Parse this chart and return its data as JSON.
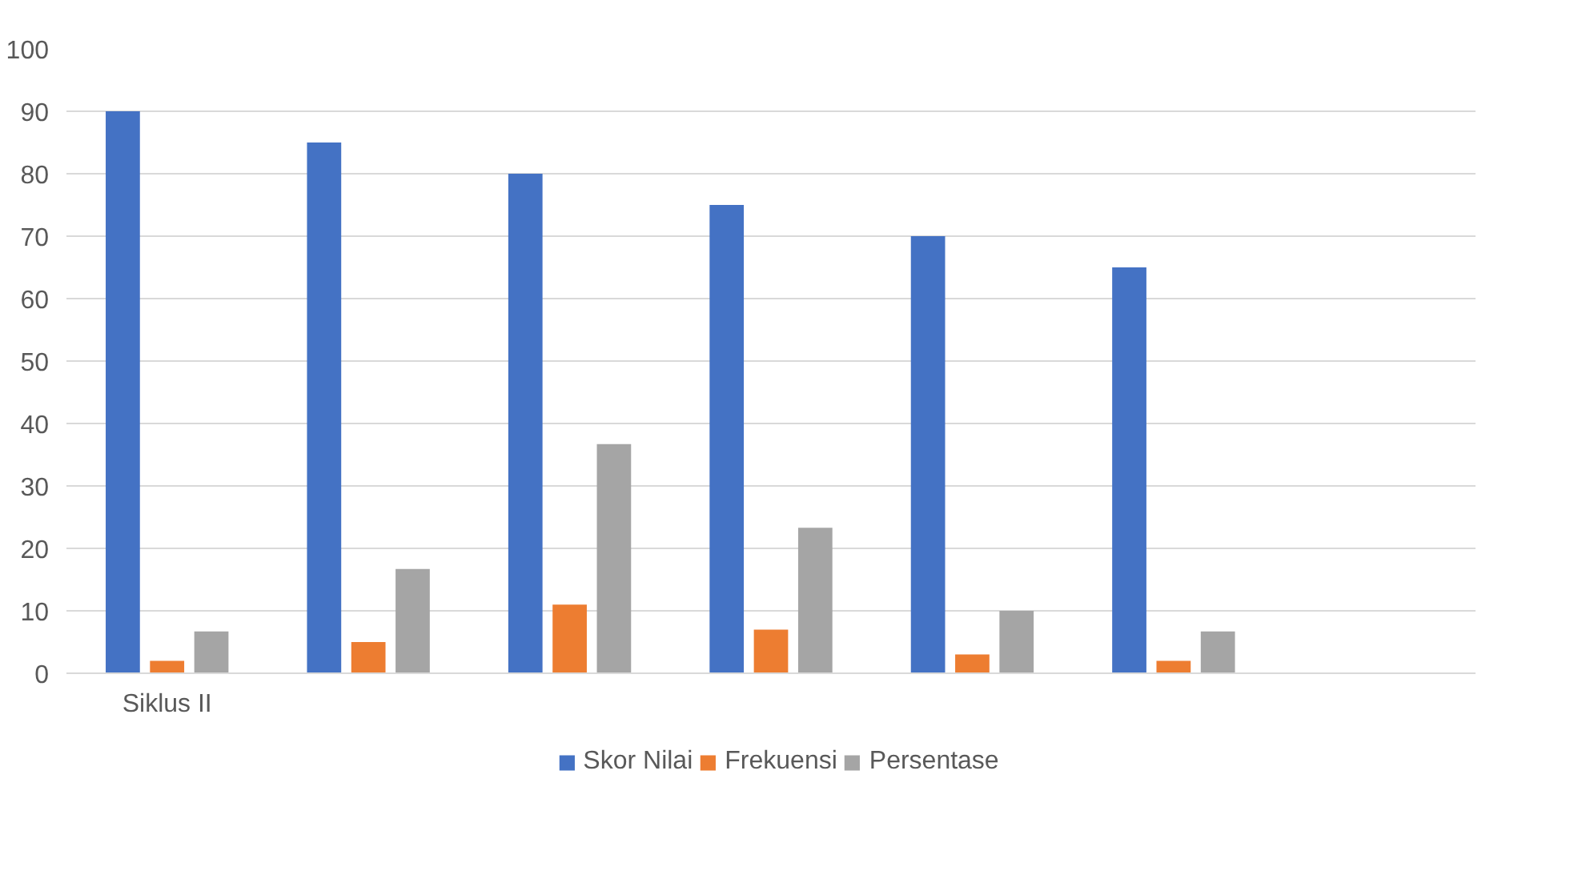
{
  "chart_data": {
    "type": "bar",
    "categories": [
      "Siklus II",
      null,
      null,
      null,
      null,
      null,
      null
    ],
    "series": [
      {
        "name": "Skor Nilai",
        "color": "#4472c4",
        "values": [
          90,
          85,
          80,
          75,
          70,
          65,
          null
        ]
      },
      {
        "name": "Frekuensi",
        "color": "#ed7d31",
        "values": [
          2,
          5,
          11,
          7,
          3,
          2,
          null
        ]
      },
      {
        "name": "Persentase",
        "color": "#a5a5a5",
        "values": [
          6.7,
          16.7,
          36.7,
          23.3,
          10,
          6.7,
          null
        ]
      }
    ],
    "ylim": [
      0,
      100
    ],
    "yticks": [
      0,
      10,
      20,
      30,
      40,
      50,
      60,
      70,
      80,
      90,
      100
    ],
    "grid": "y",
    "legend": "bottom"
  }
}
